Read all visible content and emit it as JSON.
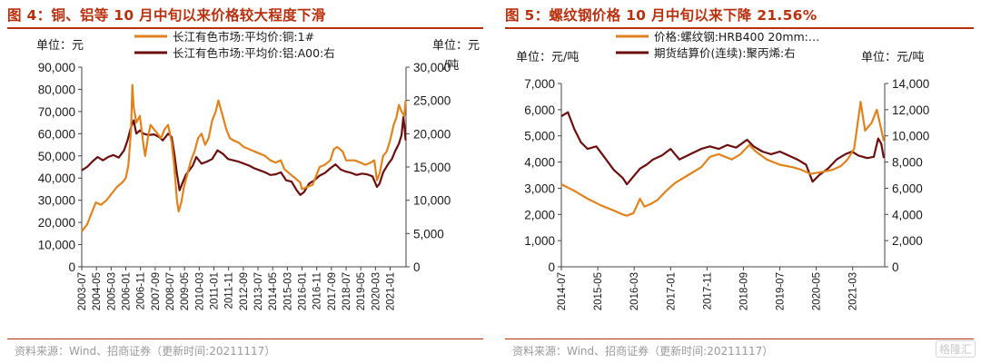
{
  "figures": [
    {
      "title": "图 4：铜、铝等 10 月中旬以来价格较大程度下滑",
      "source": "资料来源：Wind、招商证券（更新时间:20211117）"
    },
    {
      "title": "图 5：螺纹钢价格 10 月中旬以来下降 21.56%",
      "source": "资料来源：Wind、招商证券（更新时间:20211117）"
    }
  ],
  "watermark": "格隆汇",
  "chart_data": [
    {
      "type": "line",
      "left_unit": "单位：元",
      "right_unit_top": "单位：元",
      "right_unit_bottom": "/吨",
      "ylim_left": [
        0,
        90000
      ],
      "ylim_right": [
        0,
        30000
      ],
      "yticks_left": [
        "0",
        "10,000",
        "20,000",
        "30,000",
        "40,000",
        "50,000",
        "60,000",
        "70,000",
        "80,000",
        "90,000"
      ],
      "yticks_right": [
        "0",
        "5,000",
        "10,000",
        "15,000",
        "20,000",
        "25,000",
        "30,000"
      ],
      "xlim": [
        2003.5,
        2021.9
      ],
      "xticks": [
        "2003-07",
        "2004-05",
        "2005-03",
        "2006-01",
        "2006-11",
        "2007-09",
        "2008-07",
        "2009-05",
        "2010-03",
        "2011-01",
        "2011-11",
        "2012-09",
        "2013-07",
        "2014-05",
        "2015-03",
        "2016-01",
        "2016-11",
        "2017-09",
        "2018-07",
        "2019-05",
        "2020-03",
        "2021-01"
      ],
      "grid": false,
      "legend": "top",
      "series": [
        {
          "name": "长江有色市场:平均价:铜:1#",
          "axis": "left",
          "color": "#e0821d",
          "x": [
            2003.5,
            2003.8,
            2004.1,
            2004.3,
            2004.6,
            2004.9,
            2005.2,
            2005.5,
            2005.8,
            2006.0,
            2006.15,
            2006.3,
            2006.37,
            2006.45,
            2006.6,
            2006.8,
            2007.0,
            2007.1,
            2007.25,
            2007.4,
            2007.6,
            2007.8,
            2008.0,
            2008.2,
            2008.4,
            2008.6,
            2008.75,
            2008.9,
            2009.0,
            2009.15,
            2009.3,
            2009.5,
            2009.7,
            2009.9,
            2010.1,
            2010.3,
            2010.5,
            2010.7,
            2010.9,
            2011.1,
            2011.25,
            2011.5,
            2011.7,
            2011.9,
            2012.1,
            2012.4,
            2012.7,
            2013.0,
            2013.3,
            2013.6,
            2013.9,
            2014.2,
            2014.5,
            2014.8,
            2015.0,
            2015.3,
            2015.6,
            2015.9,
            2016.0,
            2016.3,
            2016.6,
            2016.85,
            2017.0,
            2017.3,
            2017.6,
            2017.8,
            2018.0,
            2018.3,
            2018.5,
            2018.8,
            2019.0,
            2019.3,
            2019.6,
            2019.9,
            2020.1,
            2020.25,
            2020.4,
            2020.6,
            2020.8,
            2021.0,
            2021.2,
            2021.35,
            2021.5,
            2021.65,
            2021.8,
            2021.88
          ],
          "y": [
            16000,
            19000,
            25000,
            29000,
            28000,
            30000,
            33000,
            36000,
            38000,
            40000,
            46000,
            62000,
            82000,
            72000,
            65000,
            68000,
            55000,
            50000,
            58000,
            64000,
            62000,
            60000,
            58000,
            62000,
            64000,
            56000,
            45000,
            30000,
            25000,
            29000,
            36000,
            42000,
            48000,
            52000,
            58000,
            60000,
            55000,
            58000,
            66000,
            70000,
            75000,
            68000,
            62000,
            58000,
            57000,
            56000,
            54000,
            53000,
            52000,
            51000,
            50000,
            48000,
            47000,
            48000,
            44000,
            42000,
            40000,
            38000,
            35000,
            36000,
            37000,
            42000,
            45000,
            46000,
            48000,
            53000,
            54000,
            52000,
            48000,
            48000,
            48000,
            47000,
            46000,
            47000,
            48000,
            39000,
            42000,
            50000,
            52000,
            57000,
            64000,
            67000,
            73000,
            70000,
            68000,
            75000
          ]
        },
        {
          "name": "长江有色市场:平均价:铝:A00:右",
          "axis": "right",
          "color": "#6b0f0f",
          "x": [
            2003.5,
            2003.8,
            2004.1,
            2004.4,
            2004.7,
            2005.0,
            2005.3,
            2005.6,
            2005.9,
            2006.1,
            2006.3,
            2006.45,
            2006.6,
            2006.8,
            2007.0,
            2007.3,
            2007.6,
            2007.9,
            2008.1,
            2008.4,
            2008.6,
            2008.75,
            2008.9,
            2009.05,
            2009.2,
            2009.4,
            2009.6,
            2009.8,
            2010.0,
            2010.3,
            2010.6,
            2010.9,
            2011.2,
            2011.5,
            2011.8,
            2012.1,
            2012.4,
            2012.7,
            2013.0,
            2013.3,
            2013.6,
            2013.9,
            2014.2,
            2014.5,
            2014.8,
            2015.1,
            2015.4,
            2015.7,
            2015.9,
            2016.1,
            2016.4,
            2016.7,
            2017.0,
            2017.3,
            2017.6,
            2017.9,
            2018.2,
            2018.5,
            2018.8,
            2019.1,
            2019.4,
            2019.7,
            2020.0,
            2020.25,
            2020.4,
            2020.6,
            2020.9,
            2021.1,
            2021.3,
            2021.5,
            2021.65,
            2021.75,
            2021.82,
            2021.88
          ],
          "y": [
            14500,
            15000,
            15800,
            16500,
            16000,
            16500,
            16800,
            16400,
            17500,
            19000,
            21000,
            22000,
            20000,
            20500,
            20000,
            19800,
            19900,
            19500,
            19000,
            20000,
            19500,
            17000,
            14000,
            11500,
            12500,
            13800,
            14500,
            15200,
            16500,
            15500,
            15800,
            16200,
            17500,
            17000,
            16200,
            16000,
            15800,
            15500,
            15200,
            14800,
            14500,
            14200,
            13800,
            13900,
            14200,
            13000,
            12800,
            11500,
            10800,
            11200,
            12500,
            13000,
            13700,
            14100,
            14800,
            15400,
            14600,
            14300,
            14100,
            13800,
            14000,
            13900,
            13600,
            12000,
            12500,
            14200,
            15500,
            16200,
            17500,
            18500,
            19800,
            22500,
            21000,
            19000
          ]
        }
      ]
    },
    {
      "type": "line",
      "left_unit": "单位：元/吨",
      "right_unit": "单位：元/吨",
      "ylim_left": [
        0,
        7000
      ],
      "ylim_right": [
        0,
        14000
      ],
      "yticks_left": [
        "0",
        "1,000",
        "2,000",
        "3,000",
        "4,000",
        "5,000",
        "6,000",
        "7,000"
      ],
      "yticks_right": [
        "0",
        "2,000",
        "4,000",
        "6,000",
        "8,000",
        "10,000",
        "12,000",
        "14,000"
      ],
      "xlim": [
        2014.5,
        2021.9
      ],
      "xticks": [
        "2014-07",
        "2015-05",
        "2016-03",
        "2017-01",
        "2017-11",
        "2018-09",
        "2019-07",
        "2020-05",
        "2021-03"
      ],
      "grid": false,
      "legend": "top",
      "series": [
        {
          "name": "价格:螺纹钢:HRB400 20mm:…",
          "axis": "left",
          "color": "#e0821d",
          "x": [
            2014.5,
            2014.8,
            2015.1,
            2015.4,
            2015.7,
            2015.9,
            2016.0,
            2016.15,
            2016.3,
            2016.4,
            2016.55,
            2016.7,
            2016.9,
            2017.1,
            2017.4,
            2017.7,
            2017.9,
            2018.1,
            2018.4,
            2018.6,
            2018.8,
            2018.95,
            2019.2,
            2019.5,
            2019.8,
            2020.0,
            2020.2,
            2020.4,
            2020.7,
            2020.9,
            2021.05,
            2021.2,
            2021.35,
            2021.45,
            2021.6,
            2021.72,
            2021.8,
            2021.88
          ],
          "y": [
            3150,
            2900,
            2600,
            2350,
            2150,
            2000,
            1950,
            2050,
            2600,
            2300,
            2400,
            2550,
            2900,
            3200,
            3500,
            3800,
            4200,
            4300,
            4100,
            4300,
            4650,
            4400,
            4100,
            3900,
            3800,
            3700,
            3550,
            3600,
            3700,
            3850,
            4100,
            4500,
            6300,
            5200,
            5500,
            6000,
            5400,
            4800
          ]
        },
        {
          "name": "期货结算价(连续):聚丙烯:右",
          "axis": "right",
          "color": "#6b0f0f",
          "x": [
            2014.5,
            2014.65,
            2014.8,
            2014.95,
            2015.1,
            2015.3,
            2015.5,
            2015.7,
            2015.9,
            2016.0,
            2016.15,
            2016.3,
            2016.45,
            2016.6,
            2016.8,
            2017.0,
            2017.2,
            2017.45,
            2017.7,
            2017.9,
            2018.1,
            2018.3,
            2018.5,
            2018.75,
            2018.9,
            2019.1,
            2019.3,
            2019.5,
            2019.7,
            2019.9,
            2020.1,
            2020.25,
            2020.4,
            2020.6,
            2020.8,
            2021.0,
            2021.15,
            2021.3,
            2021.5,
            2021.65,
            2021.75,
            2021.82,
            2021.88
          ],
          "y": [
            11500,
            11800,
            10500,
            9500,
            9000,
            9200,
            8300,
            7400,
            6800,
            6300,
            6900,
            7500,
            7800,
            8200,
            8500,
            9000,
            8200,
            8600,
            9000,
            9200,
            9000,
            9300,
            9100,
            9700,
            9200,
            8800,
            8600,
            8800,
            8500,
            8200,
            7800,
            6500,
            7000,
            7500,
            8200,
            8600,
            8800,
            8500,
            8300,
            8400,
            9800,
            9400,
            8300
          ]
        }
      ]
    }
  ]
}
